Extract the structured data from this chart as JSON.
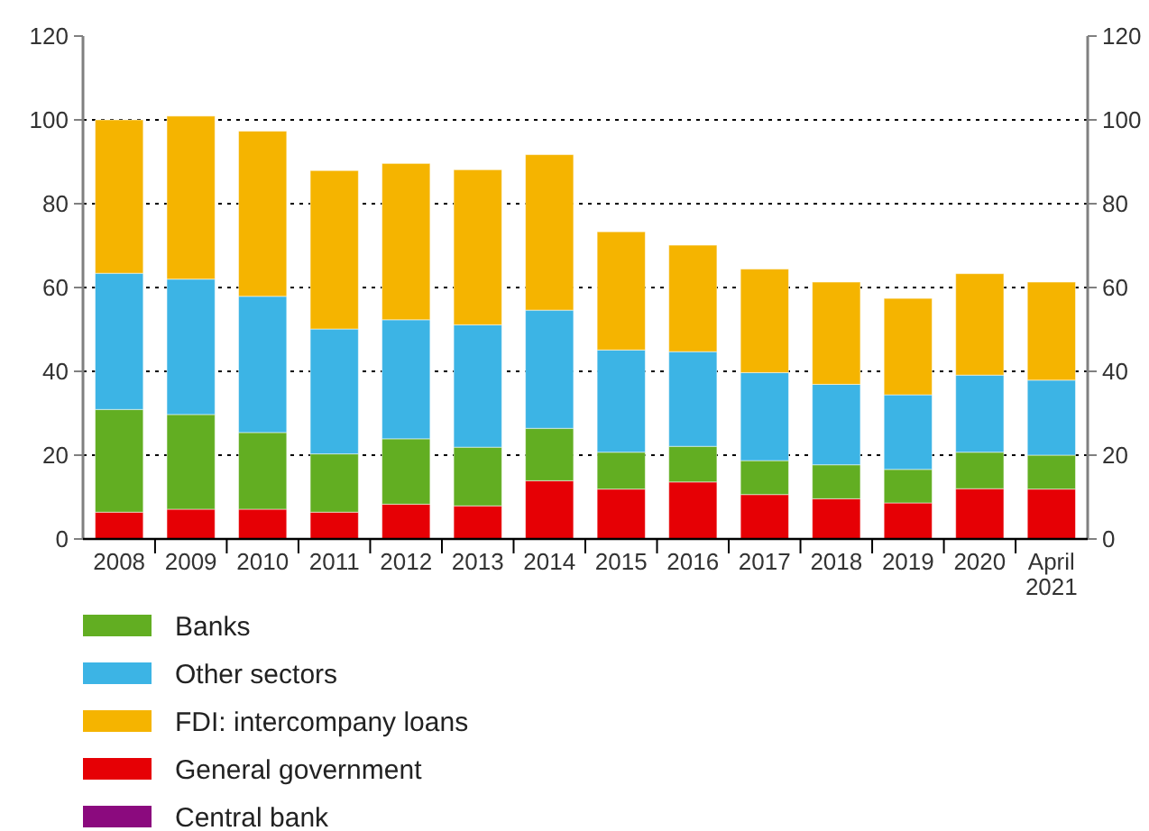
{
  "chart_data": {
    "type": "bar",
    "stacked": true,
    "categories": [
      "2008",
      "2009",
      "2010",
      "2011",
      "2012",
      "2013",
      "2014",
      "2015",
      "2016",
      "2017",
      "2018",
      "2019",
      "2020",
      "April 2021"
    ],
    "series": [
      {
        "name": "Central bank",
        "color": "#8b0a7e",
        "values": [
          0,
          0,
          0,
          0,
          0,
          0,
          0,
          0,
          0,
          0,
          0,
          0,
          0,
          0
        ]
      },
      {
        "name": "General government",
        "color": "#e60005",
        "values": [
          6.4,
          7.1,
          7.1,
          6.4,
          8.3,
          7.9,
          13.9,
          11.9,
          13.6,
          10.6,
          9.6,
          8.6,
          12.0,
          11.9
        ]
      },
      {
        "name": "Banks",
        "color": "#62ae22",
        "values": [
          24.5,
          22.6,
          18.3,
          13.9,
          15.6,
          14.0,
          12.5,
          8.8,
          8.5,
          8.1,
          8.1,
          8.0,
          8.7,
          8.1
        ]
      },
      {
        "name": "Other sectors",
        "color": "#3cb4e5",
        "values": [
          32.5,
          32.3,
          32.5,
          29.8,
          28.4,
          29.2,
          28.2,
          24.4,
          22.6,
          21.0,
          19.2,
          17.8,
          18.4,
          17.9
        ]
      },
      {
        "name": "FDI: intercompany loans",
        "color": "#f5b400",
        "values": [
          36.6,
          38.9,
          39.4,
          37.8,
          37.3,
          37.0,
          37.1,
          28.2,
          25.4,
          24.7,
          24.4,
          23.0,
          24.2,
          23.4
        ]
      }
    ],
    "ylim": [
      0,
      120
    ],
    "yticks": [
      0,
      20,
      40,
      60,
      80,
      100,
      120
    ],
    "y2lim": [
      0,
      120
    ],
    "y2ticks": [
      0,
      20,
      40,
      60,
      80,
      100,
      120
    ],
    "grid": "y",
    "legend": "bottom"
  }
}
